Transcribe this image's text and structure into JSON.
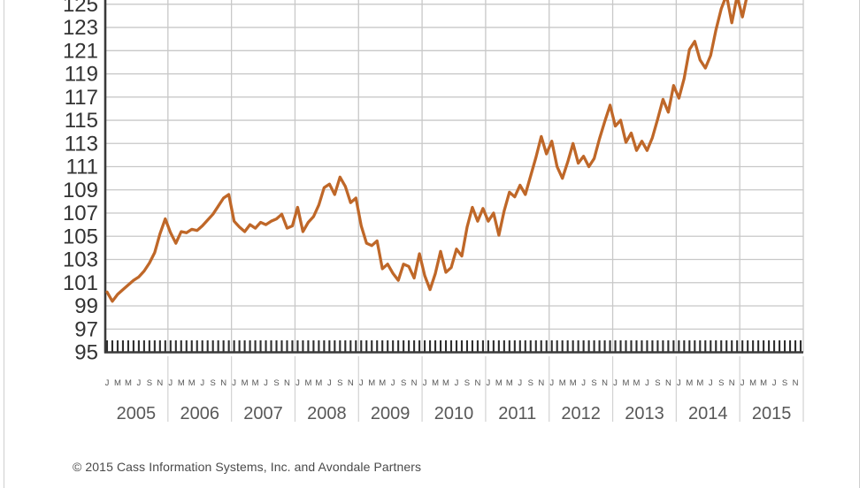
{
  "footer": {
    "copyright": "© 2015 Cass Information Systems, Inc. and Avondale Partners"
  },
  "chart_data": {
    "type": "line",
    "title": "",
    "series": [
      {
        "name": "index-line",
        "start": "2005-01",
        "frequency": "monthly",
        "values": [
          100.2,
          99.4,
          100.0,
          100.4,
          100.8,
          101.2,
          101.5,
          102.0,
          102.7,
          103.6,
          105.2,
          106.5,
          105.3,
          104.4,
          105.4,
          105.3,
          105.6,
          105.5,
          105.9,
          106.4,
          106.9,
          107.6,
          108.3,
          108.6,
          106.3,
          105.8,
          105.4,
          106.0,
          105.7,
          106.2,
          106.0,
          106.3,
          106.5,
          106.9,
          105.7,
          105.9,
          107.5,
          105.4,
          106.2,
          106.7,
          107.7,
          109.2,
          109.5,
          108.6,
          110.1,
          109.3,
          107.9,
          108.3,
          105.9,
          104.4,
          104.2,
          104.6,
          102.2,
          102.6,
          101.8,
          101.2,
          102.6,
          102.4,
          101.4,
          103.5,
          101.6,
          100.4,
          101.8,
          103.7,
          101.9,
          102.3,
          103.9,
          103.3,
          105.8,
          107.5,
          106.3,
          107.4,
          106.3,
          107.0,
          105.1,
          107.2,
          108.8,
          108.4,
          109.4,
          108.6,
          110.2,
          111.8,
          113.6,
          112.1,
          113.2,
          111.0,
          110.0,
          111.4,
          113.0,
          111.3,
          111.9,
          111.0,
          111.7,
          113.4,
          114.9,
          116.3,
          114.5,
          115.0,
          113.1,
          113.9,
          112.4,
          113.2,
          112.4,
          113.5,
          115.1,
          116.8,
          115.7,
          118.0,
          116.9,
          118.6,
          121.1,
          121.8,
          120.2,
          119.5,
          120.6,
          122.8,
          124.6,
          125.8,
          123.4,
          125.7,
          123.9,
          126.0,
          126.9
        ]
      }
    ],
    "ylim": [
      95,
      125
    ],
    "ytick_step": 2,
    "ytick_labels": [
      "125",
      "123",
      "121",
      "119",
      "117",
      "115",
      "113",
      "111",
      "109",
      "107",
      "105",
      "103",
      "101",
      "99",
      "97",
      "95"
    ],
    "xlabel": "",
    "ylabel": "",
    "years": [
      "2005",
      "2006",
      "2007",
      "2008",
      "2009",
      "2010",
      "2011",
      "2012",
      "2013",
      "2014",
      "2015"
    ],
    "month_labels": [
      "J",
      "M",
      "M",
      "J",
      "S",
      "N"
    ],
    "grid": "on",
    "legend": "none",
    "colors": {
      "line": "#bf6728",
      "grid": "#c8c8c8",
      "axis": "#3a3a3a",
      "month_ticks": "#2e2e2e",
      "ytick_text": "#333333",
      "year_text": "#585858",
      "month_text": "#555555"
    }
  }
}
